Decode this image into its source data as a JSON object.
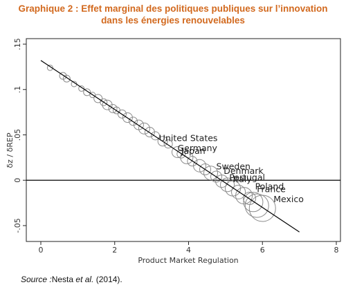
{
  "header": {
    "title_line1": "Graphique 2 : Effet marginal des politiques publiques sur l’innovation",
    "title_line2": "dans les énergies renouvelables"
  },
  "source": {
    "prefix": "Source :",
    "authors": "Nesta ",
    "etal": "et al.",
    "year": " (2014)."
  },
  "colors": {
    "title": "#d2691e",
    "circle": "#8a8a8a",
    "line": "#000000"
  },
  "chart_data": {
    "type": "scatter",
    "xlabel": "Product Market Regulation",
    "ylabel": "δz / δREP",
    "xlim": [
      0,
      8
    ],
    "ylim": [
      -0.06,
      0.15
    ],
    "xticks": [
      "0",
      "2",
      "4",
      "6",
      "8"
    ],
    "yticks": [
      "-.05",
      "0",
      ".05",
      ".1",
      ".15"
    ],
    "fit_line": {
      "x": [
        0,
        7
      ],
      "y": [
        0.132,
        -0.057
      ]
    },
    "reference_line_y": 0,
    "points": [
      {
        "x": 0.25,
        "y": 0.124,
        "r": 4
      },
      {
        "x": 0.6,
        "y": 0.115,
        "r": 5
      },
      {
        "x": 0.7,
        "y": 0.112,
        "r": 5
      },
      {
        "x": 0.9,
        "y": 0.106,
        "r": 4
      },
      {
        "x": 1.1,
        "y": 0.101,
        "r": 4
      },
      {
        "x": 1.25,
        "y": 0.097,
        "r": 5
      },
      {
        "x": 1.4,
        "y": 0.094,
        "r": 4
      },
      {
        "x": 1.55,
        "y": 0.09,
        "r": 6
      },
      {
        "x": 1.7,
        "y": 0.086,
        "r": 5
      },
      {
        "x": 1.8,
        "y": 0.083,
        "r": 7
      },
      {
        "x": 1.95,
        "y": 0.079,
        "r": 6
      },
      {
        "x": 2.05,
        "y": 0.077,
        "r": 5
      },
      {
        "x": 2.2,
        "y": 0.073,
        "r": 6
      },
      {
        "x": 2.35,
        "y": 0.069,
        "r": 7
      },
      {
        "x": 2.5,
        "y": 0.065,
        "r": 6
      },
      {
        "x": 2.65,
        "y": 0.061,
        "r": 7
      },
      {
        "x": 2.8,
        "y": 0.057,
        "r": 8
      },
      {
        "x": 2.95,
        "y": 0.053,
        "r": 7
      },
      {
        "x": 3.1,
        "y": 0.049,
        "r": 6
      },
      {
        "x": 3.3,
        "y": 0.043,
        "r": 7
      },
      {
        "x": 3.45,
        "y": 0.04,
        "r": 6
      },
      {
        "x": 3.7,
        "y": 0.031,
        "r": 8
      },
      {
        "x": 3.8,
        "y": 0.029,
        "r": 6
      },
      {
        "x": 3.95,
        "y": 0.025,
        "r": 9
      },
      {
        "x": 4.1,
        "y": 0.021,
        "r": 7
      },
      {
        "x": 4.3,
        "y": 0.016,
        "r": 9
      },
      {
        "x": 4.45,
        "y": 0.012,
        "r": 8
      },
      {
        "x": 4.6,
        "y": 0.008,
        "r": 10
      },
      {
        "x": 4.75,
        "y": 0.004,
        "r": 8
      },
      {
        "x": 4.9,
        "y": -0.001,
        "r": 9
      },
      {
        "x": 5.05,
        "y": -0.005,
        "r": 10
      },
      {
        "x": 5.2,
        "y": -0.009,
        "r": 11
      },
      {
        "x": 5.35,
        "y": -0.013,
        "r": 10
      },
      {
        "x": 5.5,
        "y": -0.017,
        "r": 12
      },
      {
        "x": 5.65,
        "y": -0.02,
        "r": 9
      },
      {
        "x": 5.75,
        "y": -0.024,
        "r": 14
      },
      {
        "x": 5.85,
        "y": -0.028,
        "r": 17
      },
      {
        "x": 6.0,
        "y": -0.031,
        "r": 19
      }
    ],
    "labels": [
      {
        "text": "United States",
        "x": 3.2,
        "y": 0.043
      },
      {
        "text": "Germany",
        "x": 3.7,
        "y": 0.032
      },
      {
        "text": "Japan",
        "x": 3.8,
        "y": 0.029
      },
      {
        "text": "Sweden",
        "x": 4.75,
        "y": 0.012
      },
      {
        "text": "Denmark",
        "x": 4.95,
        "y": 0.007
      },
      {
        "text": "Portugal",
        "x": 5.1,
        "y": 0.0
      },
      {
        "text": "Italy",
        "x": 5.2,
        "y": -0.002
      },
      {
        "text": "Poland",
        "x": 5.8,
        "y": -0.01
      },
      {
        "text": "France",
        "x": 5.85,
        "y": -0.013
      },
      {
        "text": "Mexico",
        "x": 6.3,
        "y": -0.024
      }
    ]
  }
}
